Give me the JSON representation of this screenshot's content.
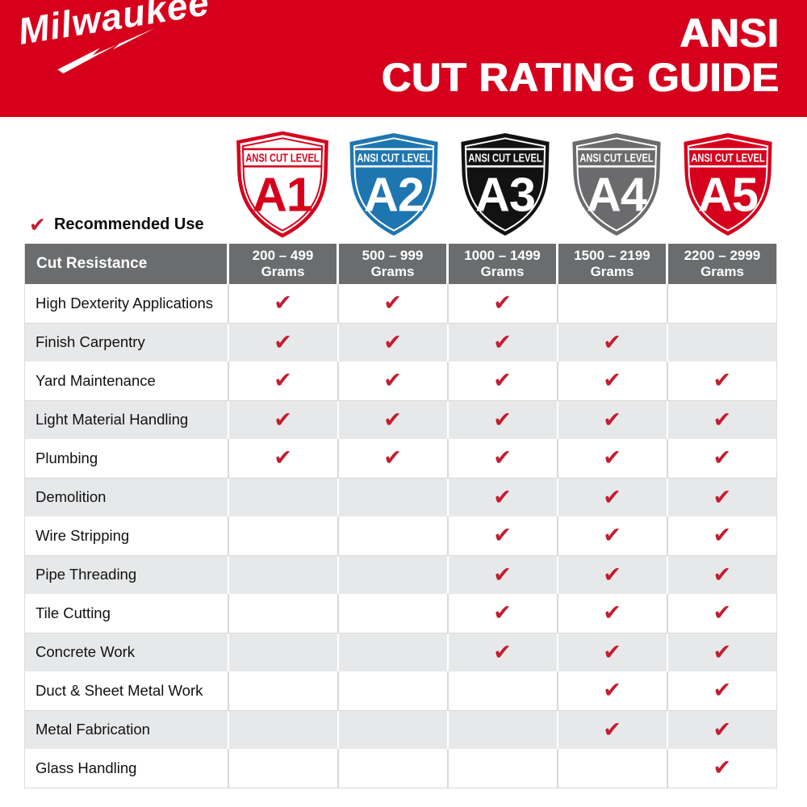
{
  "header": {
    "brand": "Milwaukee",
    "registered_mark": "®",
    "title_line1": "ANSI",
    "title_line2": "CUT RATING GUIDE"
  },
  "legend": {
    "label": "Recommended Use"
  },
  "shields": [
    {
      "band_label": "ANSI CUT LEVEL",
      "level": "A1",
      "variant": "outline",
      "body_color": "#FFFFFF",
      "accent_color": "#D6001C"
    },
    {
      "band_label": "ANSI CUT LEVEL",
      "level": "A2",
      "variant": "solid",
      "body_color": "#1E76B0",
      "accent_color": "#FFFFFF"
    },
    {
      "band_label": "ANSI CUT LEVEL",
      "level": "A3",
      "variant": "solid",
      "body_color": "#121212",
      "accent_color": "#FFFFFF"
    },
    {
      "band_label": "ANSI CUT LEVEL",
      "level": "A4",
      "variant": "solid",
      "body_color": "#6B6B6D",
      "accent_color": "#FFFFFF"
    },
    {
      "band_label": "ANSI CUT LEVEL",
      "level": "A5",
      "variant": "solid",
      "body_color": "#D6001C",
      "accent_color": "#FFFFFF"
    }
  ],
  "table": {
    "corner_header": "Cut Resistance",
    "check_glyph": "✔",
    "column_headers": [
      {
        "line1": "200 – 499",
        "line2": "Grams"
      },
      {
        "line1": "500 – 999",
        "line2": "Grams"
      },
      {
        "line1": "1000 – 1499",
        "line2": "Grams"
      },
      {
        "line1": "1500 – 2199",
        "line2": "Grams"
      },
      {
        "line1": "2200 – 2999",
        "line2": "Grams"
      }
    ],
    "rows": [
      {
        "label": "High Dexterity Applications",
        "checks": [
          true,
          true,
          true,
          false,
          false
        ]
      },
      {
        "label": "Finish Carpentry",
        "checks": [
          true,
          true,
          true,
          true,
          false
        ]
      },
      {
        "label": "Yard Maintenance",
        "checks": [
          true,
          true,
          true,
          true,
          true
        ]
      },
      {
        "label": "Light Material Handling",
        "checks": [
          true,
          true,
          true,
          true,
          true
        ]
      },
      {
        "label": "Plumbing",
        "checks": [
          true,
          true,
          true,
          true,
          true
        ]
      },
      {
        "label": "Demolition",
        "checks": [
          false,
          false,
          true,
          true,
          true
        ]
      },
      {
        "label": "Wire Stripping",
        "checks": [
          false,
          false,
          true,
          true,
          true
        ]
      },
      {
        "label": "Pipe Threading",
        "checks": [
          false,
          false,
          true,
          true,
          true
        ]
      },
      {
        "label": "Tile Cutting",
        "checks": [
          false,
          false,
          true,
          true,
          true
        ]
      },
      {
        "label": "Concrete Work",
        "checks": [
          false,
          false,
          true,
          true,
          true
        ]
      },
      {
        "label": "Duct & Sheet Metal Work",
        "checks": [
          false,
          false,
          false,
          true,
          true
        ]
      },
      {
        "label": "Metal Fabrication",
        "checks": [
          false,
          false,
          false,
          true,
          true
        ]
      },
      {
        "label": "Glass Handling",
        "checks": [
          false,
          false,
          false,
          false,
          true
        ]
      }
    ]
  },
  "colors": {
    "brand_red": "#D6001C",
    "check_red": "#C41D30",
    "level_blue": "#1E76B0",
    "level_black": "#121212",
    "level_gray": "#6B6B6D",
    "table_header_gray": "#6A6C6E",
    "alt_row_gray": "#E7E8E9"
  }
}
